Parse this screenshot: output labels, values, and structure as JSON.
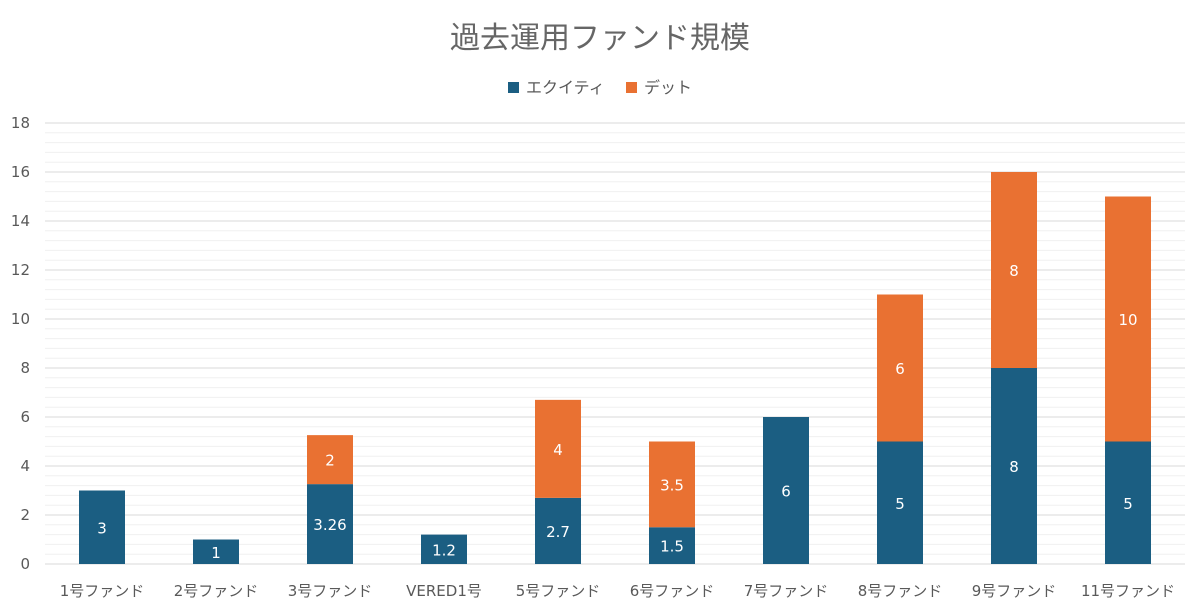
{
  "chart_data": {
    "type": "bar",
    "stacked": true,
    "title": "過去運用ファンド規模",
    "xlabel": "",
    "ylabel": "",
    "categories": [
      "1号ファンド",
      "2号ファンド",
      "3号ファンド",
      "VERED1号",
      "5号ファンド",
      "6号ファンド",
      "7号ファンド",
      "8号ファンド",
      "9号ファンド",
      "11号ファンド"
    ],
    "series": [
      {
        "name": "エクイティ",
        "color": "#1B5E82",
        "values": [
          3,
          1,
          3.26,
          1.2,
          2.7,
          1.5,
          6,
          5,
          8,
          5
        ],
        "labels": [
          "3",
          "1",
          "3.26",
          "1.2",
          "2.7",
          "1.5",
          "6",
          "5",
          "8",
          "5"
        ]
      },
      {
        "name": "デット",
        "color": "#E97132",
        "values": [
          0,
          0,
          2,
          0,
          4,
          3.5,
          0,
          6,
          8,
          10
        ],
        "labels": [
          "",
          "",
          "2",
          "",
          "4",
          "3.5",
          "",
          "6",
          "8",
          "10"
        ]
      }
    ],
    "ylim": [
      0,
      18
    ],
    "yticks": [
      "0",
      "2",
      "4",
      "6",
      "8",
      "10",
      "12",
      "14",
      "16",
      "18"
    ],
    "legend": "top-center",
    "grid": true
  }
}
